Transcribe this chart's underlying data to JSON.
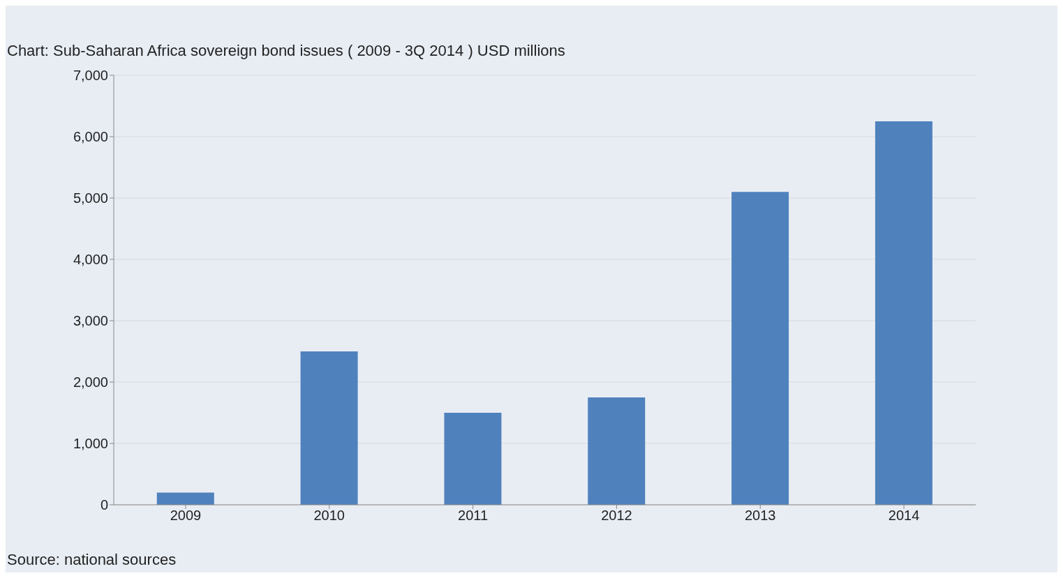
{
  "chart_data": {
    "type": "bar",
    "title": "Chart: Sub-Saharan Africa sovereign bond issues ( 2009 - 3Q 2014 ) USD millions",
    "categories": [
      "2009",
      "2010",
      "2011",
      "2012",
      "2013",
      "2014"
    ],
    "values": [
      200,
      2500,
      1500,
      1750,
      5100,
      6250
    ],
    "color": "#4f81bd",
    "ylim": [
      0,
      7000
    ],
    "yticks": [
      {
        "value": 0,
        "label": "0"
      },
      {
        "value": 1000,
        "label": "1,000"
      },
      {
        "value": 2000,
        "label": "2,000"
      },
      {
        "value": 3000,
        "label": "3,000"
      },
      {
        "value": 4000,
        "label": "4,000"
      },
      {
        "value": 5000,
        "label": "5,000"
      },
      {
        "value": 6000,
        "label": "6,000"
      },
      {
        "value": 7000,
        "label": "7,000"
      }
    ],
    "grid": "y",
    "annotations": [
      "Source: national sources"
    ]
  }
}
